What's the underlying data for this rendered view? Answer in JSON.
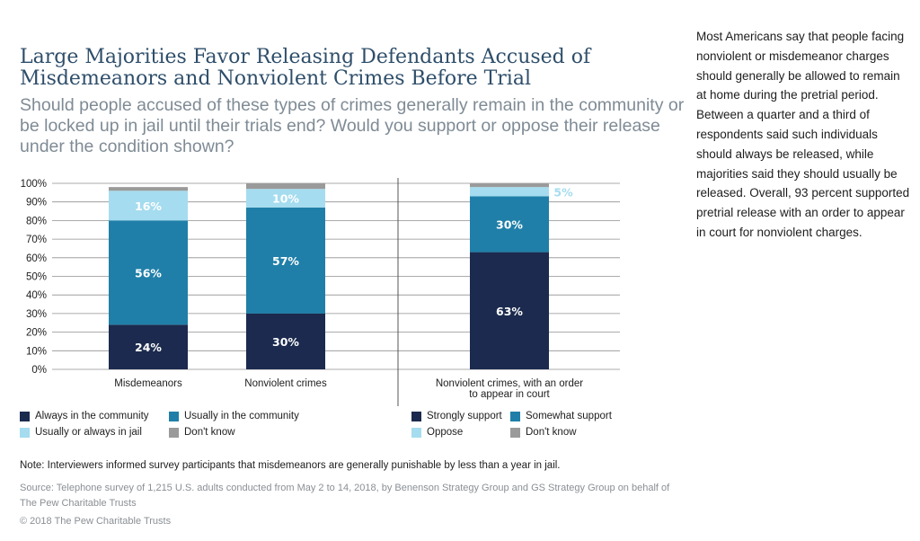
{
  "title": "Large Majorities Favor Releasing Defendants Accused of Misdemeanors and Nonviolent Crimes Before Trial",
  "subtitle": "Should people accused of these types of crimes generally remain in the community or be locked up in jail until their trials end? Would you support or oppose their release under the condition shown?",
  "side_text": "Most Americans say that people facing nonviolent or misdemeanor charges should generally be allowed to remain at home during the pretrial period. Between a quarter and a third of respondents said such individuals should always be released, while majorities said they should usually be released. Overall, 93 percent supported pretrial release with an order to appear in court for nonviolent charges.",
  "legend_left": [
    {
      "label": "Always in the community",
      "color": "#1b2a4e"
    },
    {
      "label": "Usually in the community",
      "color": "#1f7fa8"
    },
    {
      "label": "Usually or always in jail",
      "color": "#a5dcef"
    },
    {
      "label": "Don't know",
      "color": "#9a9a9a"
    }
  ],
  "legend_right": [
    {
      "label": "Strongly support",
      "color": "#1b2a4e"
    },
    {
      "label": "Somewhat support",
      "color": "#1f7fa8"
    },
    {
      "label": "Oppose",
      "color": "#a5dcef"
    },
    {
      "label": "Don't know",
      "color": "#9a9a9a"
    }
  ],
  "note": "Note: Interviewers informed survey participants that misdemeanors are generally punishable by less than a year in jail.",
  "source": "Source: Telephone survey of 1,215 U.S. adults conducted from May 2 to 14, 2018, by Benenson Strategy Group and GS Strategy Group on behalf of The Pew Charitable Trusts",
  "copyright": "© 2018 The Pew Charitable Trusts",
  "chart_data": {
    "type": "bar",
    "stacked": true,
    "categories": [
      "Misdemeanors",
      "Nonviolent crimes",
      "Nonviolent crimes, with an order to appear in court"
    ],
    "ylim": [
      0,
      100
    ],
    "yticks": [
      "0%",
      "10%",
      "20%",
      "30%",
      "40%",
      "50%",
      "60%",
      "70%",
      "80%",
      "90%",
      "100%"
    ],
    "grid": true,
    "segments": [
      {
        "color": "#1b2a4e",
        "values": [
          24,
          30,
          63
        ],
        "labels": [
          "24%",
          "30%",
          "63%"
        ],
        "label_color": "#ffffff"
      },
      {
        "color": "#1f7fa8",
        "values": [
          56,
          57,
          30
        ],
        "labels": [
          "56%",
          "57%",
          "30%"
        ],
        "label_color": "#ffffff"
      },
      {
        "color": "#a5dcef",
        "values": [
          16,
          10,
          5
        ],
        "labels": [
          "16%",
          "10%",
          "5%"
        ],
        "label_color": "#ffffff"
      },
      {
        "color": "#9a9a9a",
        "values": [
          2,
          3,
          2
        ],
        "labels": [
          "",
          "",
          ""
        ],
        "label_color": "#ffffff"
      }
    ]
  }
}
